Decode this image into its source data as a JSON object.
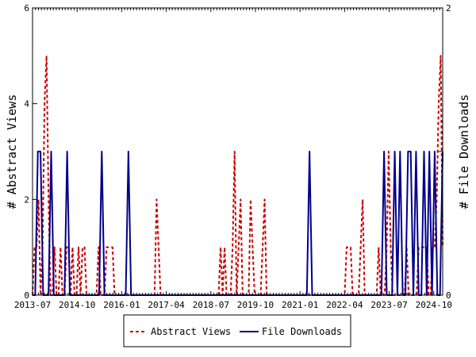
{
  "chart_data": {
    "type": "line",
    "left_axis_label": "# Abstract Views",
    "right_axis_label": "# File Downloads",
    "left_ylim": [
      0,
      6
    ],
    "left_yticks": [
      "0",
      "2",
      "4",
      "6"
    ],
    "right_ylim": [
      0,
      2
    ],
    "right_yticks": [
      "0",
      "1",
      "2"
    ],
    "x_tick_labels": [
      "2013-07",
      "2014-10",
      "2016-01",
      "2017-04",
      "2018-07",
      "2019-10",
      "2021-01",
      "2022-04",
      "2023-07",
      "2024-10"
    ],
    "x_range_months": 138,
    "colors": {
      "abstract_views": "#cc0000",
      "file_downloads": "#00008b"
    },
    "series": [
      {
        "name": "Abstract Views",
        "axis": "left",
        "style": "dashed",
        "values": [
          0,
          1,
          1,
          2,
          0,
          1,
          4,
          5,
          2,
          0,
          0,
          1,
          0,
          0,
          1,
          0,
          0,
          1,
          1,
          0,
          1,
          0,
          0,
          1,
          0,
          1,
          1,
          0,
          0,
          0,
          0,
          0,
          0,
          1,
          0,
          0,
          0,
          1,
          1,
          1,
          1,
          0,
          0,
          0,
          0,
          0,
          0,
          0,
          0,
          0,
          0,
          0,
          0,
          0,
          0,
          0,
          0,
          0,
          0,
          0,
          0,
          0,
          2,
          1,
          0,
          0,
          0,
          0,
          0,
          0,
          0,
          0,
          0,
          0,
          0,
          0,
          0,
          0,
          0,
          0,
          0,
          0,
          0,
          0,
          0,
          0,
          0,
          0,
          0,
          0,
          0,
          0,
          0,
          0,
          1,
          0,
          1,
          0,
          0,
          0,
          1,
          3,
          0,
          1,
          2,
          0,
          0,
          0,
          0,
          2,
          1,
          0,
          0,
          0,
          0,
          1,
          2,
          0,
          0,
          0,
          0,
          0,
          0,
          0,
          0,
          0,
          0,
          0,
          0,
          0,
          0,
          0,
          0,
          0,
          0,
          0,
          0,
          0,
          0,
          0,
          0,
          0,
          0,
          0,
          0,
          0,
          0,
          0,
          0,
          0,
          0,
          0,
          0,
          0,
          0,
          0,
          0,
          1,
          1,
          1,
          0,
          0,
          0,
          0,
          1,
          2,
          0,
          0,
          0,
          0,
          0,
          0,
          0,
          1,
          0,
          0,
          0,
          1,
          3,
          1,
          0,
          0,
          0,
          0,
          0,
          0,
          0,
          1,
          0,
          0,
          0,
          0,
          0,
          1,
          1,
          1,
          1,
          1,
          0,
          0,
          1,
          1,
          2,
          4,
          5,
          1
        ]
      },
      {
        "name": "File Downloads",
        "axis": "right",
        "style": "solid",
        "values": [
          0,
          0,
          1,
          1,
          0,
          0,
          0,
          1,
          0,
          0,
          0,
          0,
          0,
          1,
          0,
          0,
          0,
          0,
          0,
          0,
          0,
          0,
          0,
          0,
          0,
          0,
          1,
          0,
          0,
          0,
          0,
          0,
          0,
          0,
          0,
          0,
          1,
          0,
          0,
          0,
          0,
          0,
          0,
          0,
          0,
          0,
          0,
          0,
          0,
          0,
          0,
          0,
          0,
          0,
          0,
          0,
          0,
          0,
          0,
          0,
          0,
          0,
          0,
          0,
          0,
          0,
          0,
          0,
          0,
          0,
          0,
          0,
          0,
          0,
          0,
          0,
          0,
          0,
          0,
          0,
          0,
          0,
          0,
          0,
          0,
          0,
          0,
          0,
          0,
          0,
          0,
          0,
          0,
          0,
          0,
          0,
          0,
          0,
          0,
          0,
          0,
          0,
          0,
          0,
          1,
          0,
          0,
          0,
          0,
          0,
          0,
          0,
          0,
          0,
          0,
          0,
          0,
          0,
          0,
          0,
          0,
          0,
          0,
          0,
          0,
          0,
          0,
          0,
          0,
          0,
          0,
          0,
          1,
          0,
          0,
          0,
          1,
          0,
          1,
          0,
          0,
          1,
          1,
          0,
          1,
          0,
          0,
          1,
          0,
          1,
          0,
          1,
          0,
          0,
          1
        ]
      }
    ],
    "legend_position": "bottom"
  }
}
